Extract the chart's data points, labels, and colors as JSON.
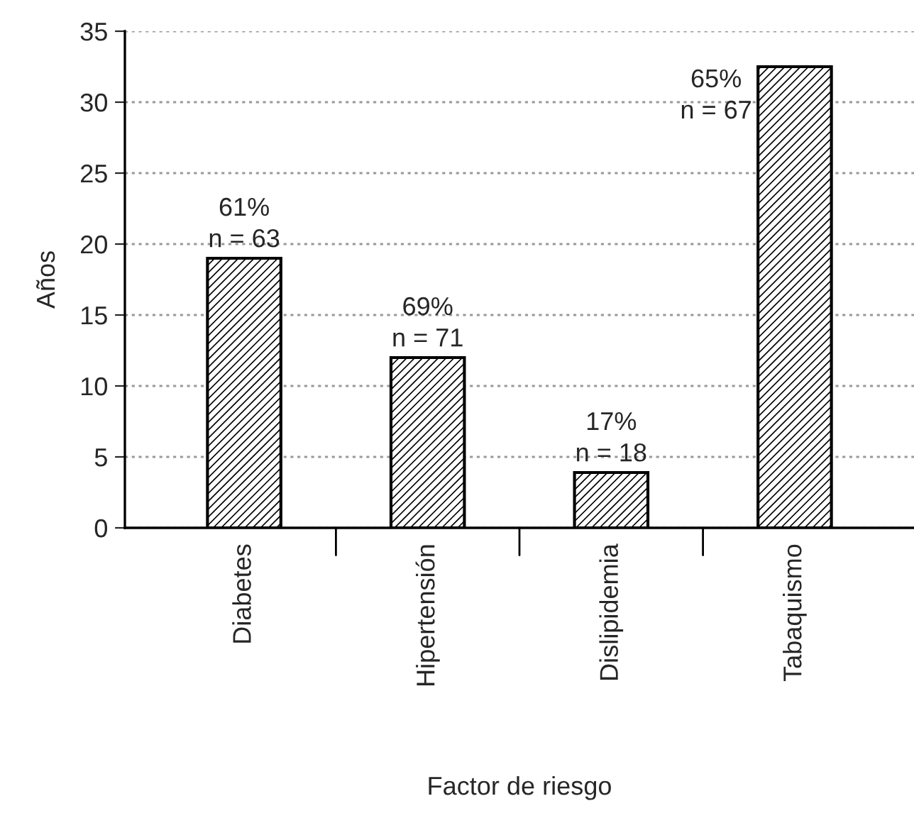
{
  "chart_data": {
    "type": "bar",
    "xlabel": "Factor de riesgo",
    "ylabel": "Años",
    "categories": [
      "Diabetes",
      "Hipertensión",
      "Dislipidemia",
      "Tabaquismo"
    ],
    "values": [
      19,
      12,
      3.9,
      32.5
    ],
    "annotations": [
      {
        "text": "61%\nn = 63",
        "x": "Diabetes",
        "y": 19
      },
      {
        "text": "69%\nn = 71",
        "x": "Hipertensión",
        "y": 12
      },
      {
        "text": "17%\nn = 18",
        "x": "Dislipidemia",
        "y": 3.9
      },
      {
        "text": "65%\nn = 67",
        "x": "Tabaquismo",
        "y": 32.5
      }
    ],
    "color": "#000000",
    "ylim": [
      0,
      35
    ],
    "yticks": [
      0,
      5,
      10,
      15,
      20,
      25,
      30,
      35
    ],
    "grid": "y",
    "legend": false
  }
}
